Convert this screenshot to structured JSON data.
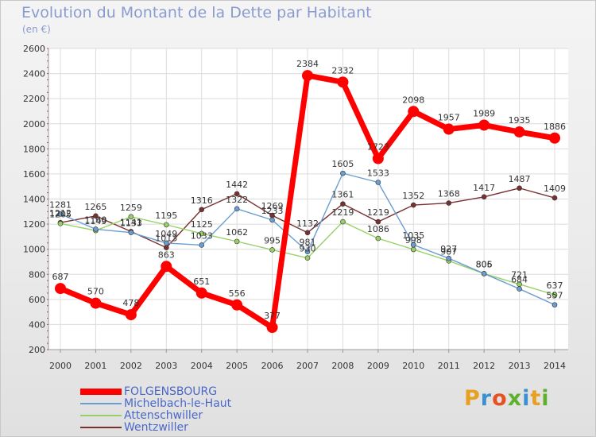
{
  "title": "Evolution du Montant de la Dette par Habitant",
  "subtitle": "(en €)",
  "logo": {
    "text": "Proxiti",
    "colors": [
      "#e8a020",
      "#3a90d0",
      "#e85020",
      "#60b030",
      "#3a90d0",
      "#e8a020",
      "#60b030"
    ]
  },
  "chart_data": {
    "type": "line",
    "title": "Evolution du Montant de la Dette par Habitant",
    "ylabel": "(en €)",
    "xlabel": "",
    "x": [
      2000,
      2001,
      2002,
      2003,
      2004,
      2005,
      2006,
      2007,
      2008,
      2009,
      2010,
      2011,
      2012,
      2013,
      2014
    ],
    "ylim": [
      200,
      2600
    ],
    "yticks": [
      200,
      400,
      600,
      800,
      1000,
      1200,
      1400,
      1600,
      1800,
      2000,
      2200,
      2400,
      2600
    ],
    "grid": true,
    "legend": "bottom-left",
    "series": [
      {
        "name": "FOLGENSBOURG",
        "color": "#ff0000",
        "values": [
          687,
          570,
          478,
          863,
          651,
          556,
          377,
          2384,
          2332,
          1723,
          2098,
          1957,
          1989,
          1935,
          1886
        ],
        "labels": [
          "687",
          "570",
          "478",
          "863",
          "651",
          "556",
          "377",
          "2384",
          "2332",
          "1723",
          "2098",
          "1957",
          "1989",
          "1935",
          "1886"
        ]
      },
      {
        "name": "Michelbach-le-Haut",
        "color": "#6a9ed0",
        "values": [
          1281,
          1160,
          1133,
          1049,
          1033,
          1322,
          1233,
          981,
          1605,
          1533,
          1035,
          927,
          806,
          684,
          557
        ],
        "labels": [
          "1281",
          "1160",
          "1133",
          "1049",
          "1033",
          "1322",
          "1233",
          "981",
          "1605",
          "1533",
          "1035",
          "927",
          "806",
          "684",
          "557"
        ]
      },
      {
        "name": "Attenschwiller",
        "color": "#99d066",
        "values": [
          1205,
          1149,
          1259,
          1195,
          1125,
          1062,
          995,
          930,
          1219,
          1086,
          998,
          907,
          805,
          721,
          637
        ],
        "labels": [
          "1205",
          "1149",
          "1259",
          "1195",
          "1125",
          "1062",
          "995",
          "930",
          "1219",
          "1086",
          "998",
          "907",
          "805",
          "721",
          "637"
        ]
      },
      {
        "name": "Wentzwiller",
        "color": "#7a3030",
        "values": [
          1212,
          1265,
          1141,
          1013,
          1316,
          1442,
          1269,
          1132,
          1361,
          1219,
          1352,
          1368,
          1417,
          1487,
          1409
        ],
        "labels": [
          "1212",
          "1265",
          "1141",
          "1013",
          "1316",
          "1442",
          "1269",
          "1132",
          "1361",
          "1219",
          "1352",
          "1368",
          "1417",
          "1487",
          "1409"
        ]
      }
    ]
  }
}
